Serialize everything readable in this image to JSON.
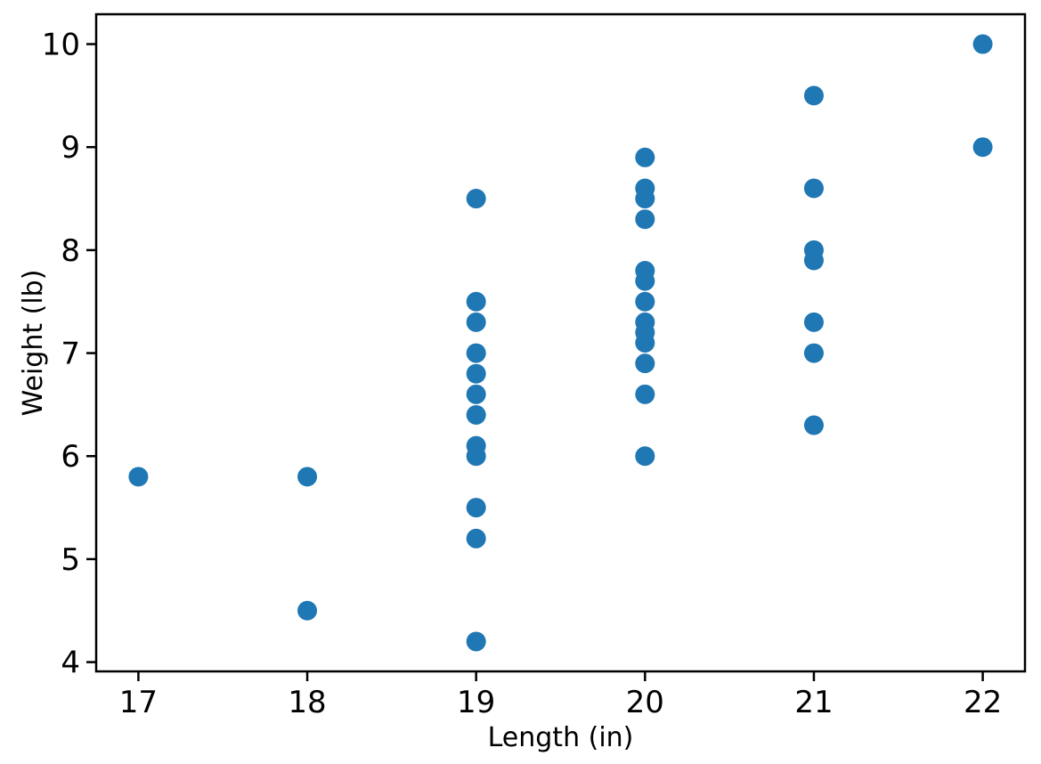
{
  "chart_data": {
    "type": "scatter",
    "title": "",
    "xlabel": "Length (in)",
    "ylabel": "Weight (lb)",
    "xlim": [
      16.75,
      22.25
    ],
    "ylim": [
      3.91,
      10.29
    ],
    "xticks": [
      17,
      18,
      19,
      20,
      21,
      22
    ],
    "yticks": [
      4,
      5,
      6,
      7,
      8,
      9,
      10
    ],
    "grid": false,
    "legend": null,
    "marker_color": "#1f77b4",
    "marker_diameter_px": 22,
    "axis_color": "#000000",
    "background_color": "#ffffff",
    "points": [
      [
        17,
        5.8
      ],
      [
        18,
        4.5
      ],
      [
        18,
        5.8
      ],
      [
        19,
        4.2
      ],
      [
        19,
        5.2
      ],
      [
        19,
        5.5
      ],
      [
        19,
        6.0
      ],
      [
        19,
        6.1
      ],
      [
        19,
        6.4
      ],
      [
        19,
        6.6
      ],
      [
        19,
        6.8
      ],
      [
        19,
        7.0
      ],
      [
        19,
        7.3
      ],
      [
        19,
        7.5
      ],
      [
        19,
        8.5
      ],
      [
        20,
        6.0
      ],
      [
        20,
        6.6
      ],
      [
        20,
        6.9
      ],
      [
        20,
        7.1
      ],
      [
        20,
        7.2
      ],
      [
        20,
        7.3
      ],
      [
        20,
        7.5
      ],
      [
        20,
        7.7
      ],
      [
        20,
        7.8
      ],
      [
        20,
        8.3
      ],
      [
        20,
        8.5
      ],
      [
        20,
        8.6
      ],
      [
        20,
        8.9
      ],
      [
        21,
        6.3
      ],
      [
        21,
        7.0
      ],
      [
        21,
        7.3
      ],
      [
        21,
        7.9
      ],
      [
        21,
        8.0
      ],
      [
        21,
        8.6
      ],
      [
        21,
        9.5
      ],
      [
        22,
        9.0
      ],
      [
        22,
        10.0
      ]
    ]
  }
}
